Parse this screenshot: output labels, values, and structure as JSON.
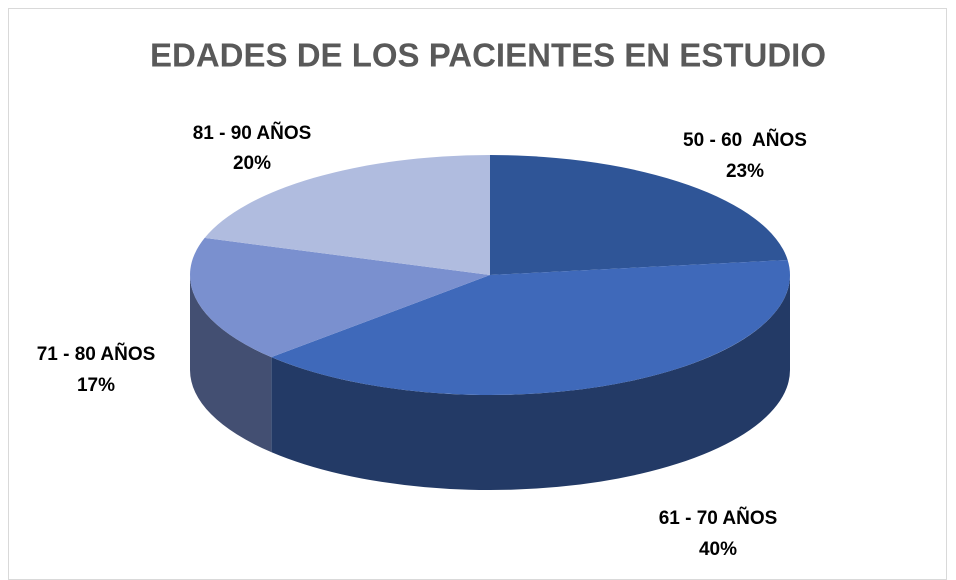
{
  "chart_data": {
    "type": "pie",
    "title": "EDADES DE LOS PACIENTES EN ESTUDIO",
    "categories": [
      "50 - 60  AÑOS",
      "61 - 70 AÑOS",
      "71 - 80 AÑOS",
      "81 - 90 AÑOS"
    ],
    "values": [
      23,
      40,
      17,
      20
    ],
    "value_labels": [
      "23%",
      "40%",
      "17%",
      "20%"
    ],
    "colors": [
      "#2f5597",
      "#3f69ba",
      "#7a90cf",
      "#b0bcdf"
    ]
  }
}
